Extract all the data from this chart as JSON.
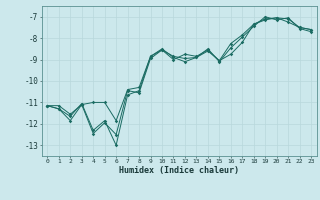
{
  "xlabel": "Humidex (Indice chaleur)",
  "bg_color": "#cce8ec",
  "line_color": "#1a6b62",
  "grid_color": "#b8d8dc",
  "xlim": [
    -0.5,
    23.5
  ],
  "ylim": [
    -13.5,
    -6.5
  ],
  "yticks": [
    -13,
    -12,
    -11,
    -10,
    -9,
    -8,
    -7
  ],
  "xticks": [
    0,
    1,
    2,
    3,
    4,
    5,
    6,
    7,
    8,
    9,
    10,
    11,
    12,
    13,
    14,
    15,
    16,
    17,
    18,
    19,
    20,
    21,
    22,
    23
  ],
  "series": {
    "line1": [
      [
        0,
        -11.15
      ],
      [
        1,
        -11.3
      ],
      [
        2,
        -11.85
      ],
      [
        3,
        -11.1
      ],
      [
        4,
        -12.45
      ],
      [
        5,
        -11.95
      ],
      [
        6,
        -12.5
      ],
      [
        7,
        -10.45
      ],
      [
        8,
        -10.55
      ],
      [
        9,
        -8.95
      ],
      [
        10,
        -8.55
      ],
      [
        11,
        -8.85
      ],
      [
        12,
        -8.95
      ],
      [
        13,
        -8.9
      ],
      [
        14,
        -8.6
      ],
      [
        15,
        -9.05
      ],
      [
        16,
        -8.75
      ],
      [
        17,
        -8.2
      ],
      [
        18,
        -7.35
      ],
      [
        19,
        -7.1
      ],
      [
        20,
        -7.05
      ],
      [
        21,
        -7.1
      ],
      [
        22,
        -7.5
      ],
      [
        23,
        -7.6
      ]
    ],
    "line2": [
      [
        0,
        -11.15
      ],
      [
        1,
        -11.15
      ],
      [
        2,
        -11.55
      ],
      [
        3,
        -11.1
      ],
      [
        4,
        -11.0
      ],
      [
        5,
        -11.0
      ],
      [
        6,
        -11.85
      ],
      [
        7,
        -10.4
      ],
      [
        8,
        -10.3
      ],
      [
        9,
        -8.85
      ],
      [
        10,
        -8.55
      ],
      [
        11,
        -9.0
      ],
      [
        12,
        -8.75
      ],
      [
        13,
        -8.85
      ],
      [
        14,
        -8.55
      ],
      [
        15,
        -9.05
      ],
      [
        16,
        -8.25
      ],
      [
        17,
        -7.85
      ],
      [
        18,
        -7.35
      ],
      [
        19,
        -7.15
      ],
      [
        20,
        -7.05
      ],
      [
        21,
        -7.25
      ],
      [
        22,
        -7.5
      ],
      [
        23,
        -7.6
      ]
    ],
    "line3": [
      [
        0,
        -11.15
      ],
      [
        1,
        -11.3
      ],
      [
        2,
        -11.65
      ],
      [
        3,
        -11.05
      ],
      [
        4,
        -12.3
      ],
      [
        5,
        -11.85
      ],
      [
        6,
        -13.0
      ],
      [
        7,
        -10.65
      ],
      [
        8,
        -10.45
      ],
      [
        9,
        -8.85
      ],
      [
        10,
        -8.5
      ],
      [
        11,
        -8.9
      ],
      [
        12,
        -9.1
      ],
      [
        13,
        -8.9
      ],
      [
        14,
        -8.5
      ],
      [
        15,
        -9.1
      ],
      [
        16,
        -8.45
      ],
      [
        17,
        -7.95
      ],
      [
        18,
        -7.45
      ],
      [
        19,
        -7.0
      ],
      [
        20,
        -7.15
      ],
      [
        21,
        -7.05
      ],
      [
        22,
        -7.55
      ],
      [
        23,
        -7.7
      ]
    ]
  }
}
